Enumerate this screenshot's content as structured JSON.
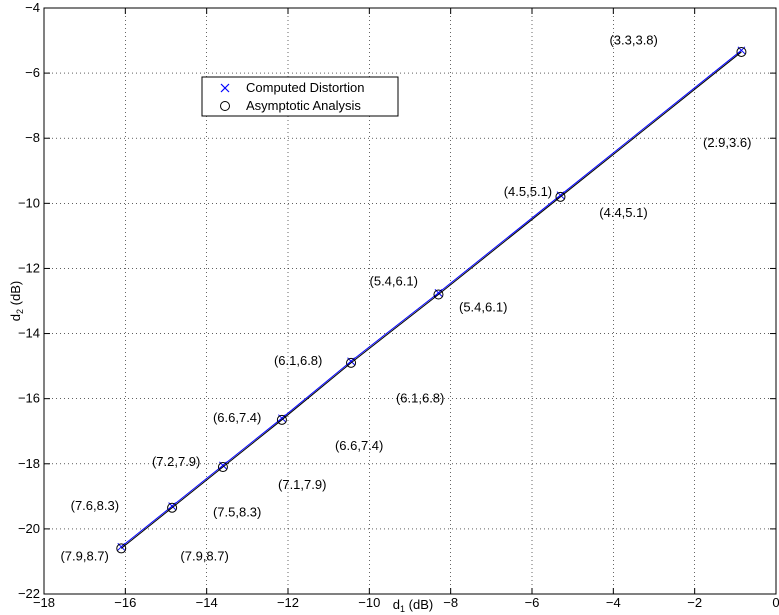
{
  "chart_data": {
    "type": "line",
    "title": "",
    "xlabel_main": "d",
    "xlabel_sub": "1",
    "xlabel_unit": " (dB)",
    "ylabel_main": "d",
    "ylabel_sub": "2",
    "ylabel_unit": " (dB)",
    "xlim": [
      -18,
      0
    ],
    "ylim": [
      -22,
      -4
    ],
    "x_ticks": [
      -18,
      -16,
      -14,
      -12,
      -10,
      -8,
      -6,
      -4,
      -2,
      0
    ],
    "y_ticks": [
      -22,
      -20,
      -18,
      -16,
      -14,
      -12,
      -10,
      -8,
      -6,
      -4
    ],
    "x_tick_labels": [
      "−18",
      "−16",
      "−14",
      "−12",
      "−10",
      "−8",
      "−6",
      "−4",
      "−2",
      "0"
    ],
    "y_tick_labels": [
      "−22",
      "−20",
      "−18",
      "−16",
      "−14",
      "−12",
      "−10",
      "−8",
      "−6",
      "−4"
    ],
    "grid": true,
    "legend_position": "upper-left",
    "series": [
      {
        "name": "Computed Distortion",
        "marker": "x",
        "color": "#0000ff",
        "x": [
          -16.1,
          -14.85,
          -13.6,
          -12.15,
          -10.45,
          -8.3,
          -5.3,
          -0.85
        ],
        "y": [
          -20.55,
          -19.3,
          -18.05,
          -16.6,
          -14.85,
          -12.75,
          -9.75,
          -5.3
        ]
      },
      {
        "name": "Asymptotic Analysis",
        "marker": "o",
        "color": "#000000",
        "x": [
          -16.1,
          -14.85,
          -13.6,
          -12.15,
          -10.45,
          -8.3,
          -5.3,
          -0.85
        ],
        "y": [
          -20.6,
          -19.35,
          -18.1,
          -16.65,
          -14.9,
          -12.8,
          -9.8,
          -5.35
        ]
      }
    ],
    "annotations": [
      {
        "text": "(3.3,3.8)",
        "x": -3.5,
        "y": -5.0
      },
      {
        "text": "(2.9,3.6)",
        "x": -1.2,
        "y": -8.15
      },
      {
        "text": "(4.5,5.1)",
        "x": -6.1,
        "y": -9.65
      },
      {
        "text": "(4.4,5.1)",
        "x": -3.75,
        "y": -10.3
      },
      {
        "text": "(5.4,6.1)",
        "x": -9.4,
        "y": -12.4
      },
      {
        "text": "(5.4,6.1)",
        "x": -7.2,
        "y": -13.2
      },
      {
        "text": "(6.1,6.8)",
        "x": -11.75,
        "y": -14.85
      },
      {
        "text": "(6.1,6.8)",
        "x": -8.75,
        "y": -16.0
      },
      {
        "text": "(6.6,7.4)",
        "x": -13.25,
        "y": -16.6
      },
      {
        "text": "(6.6,7.4)",
        "x": -10.25,
        "y": -17.45
      },
      {
        "text": "(7.2,7.9)",
        "x": -14.75,
        "y": -17.95
      },
      {
        "text": "(7.1,7.9)",
        "x": -11.65,
        "y": -18.65
      },
      {
        "text": "(7.6,8.3)",
        "x": -16.75,
        "y": -19.3
      },
      {
        "text": "(7.5,8.3)",
        "x": -13.25,
        "y": -19.5
      },
      {
        "text": "(7.9,8.7)",
        "x": -17.0,
        "y": -20.85
      },
      {
        "text": "(7.9,8.7)",
        "x": -14.05,
        "y": -20.85
      }
    ]
  }
}
